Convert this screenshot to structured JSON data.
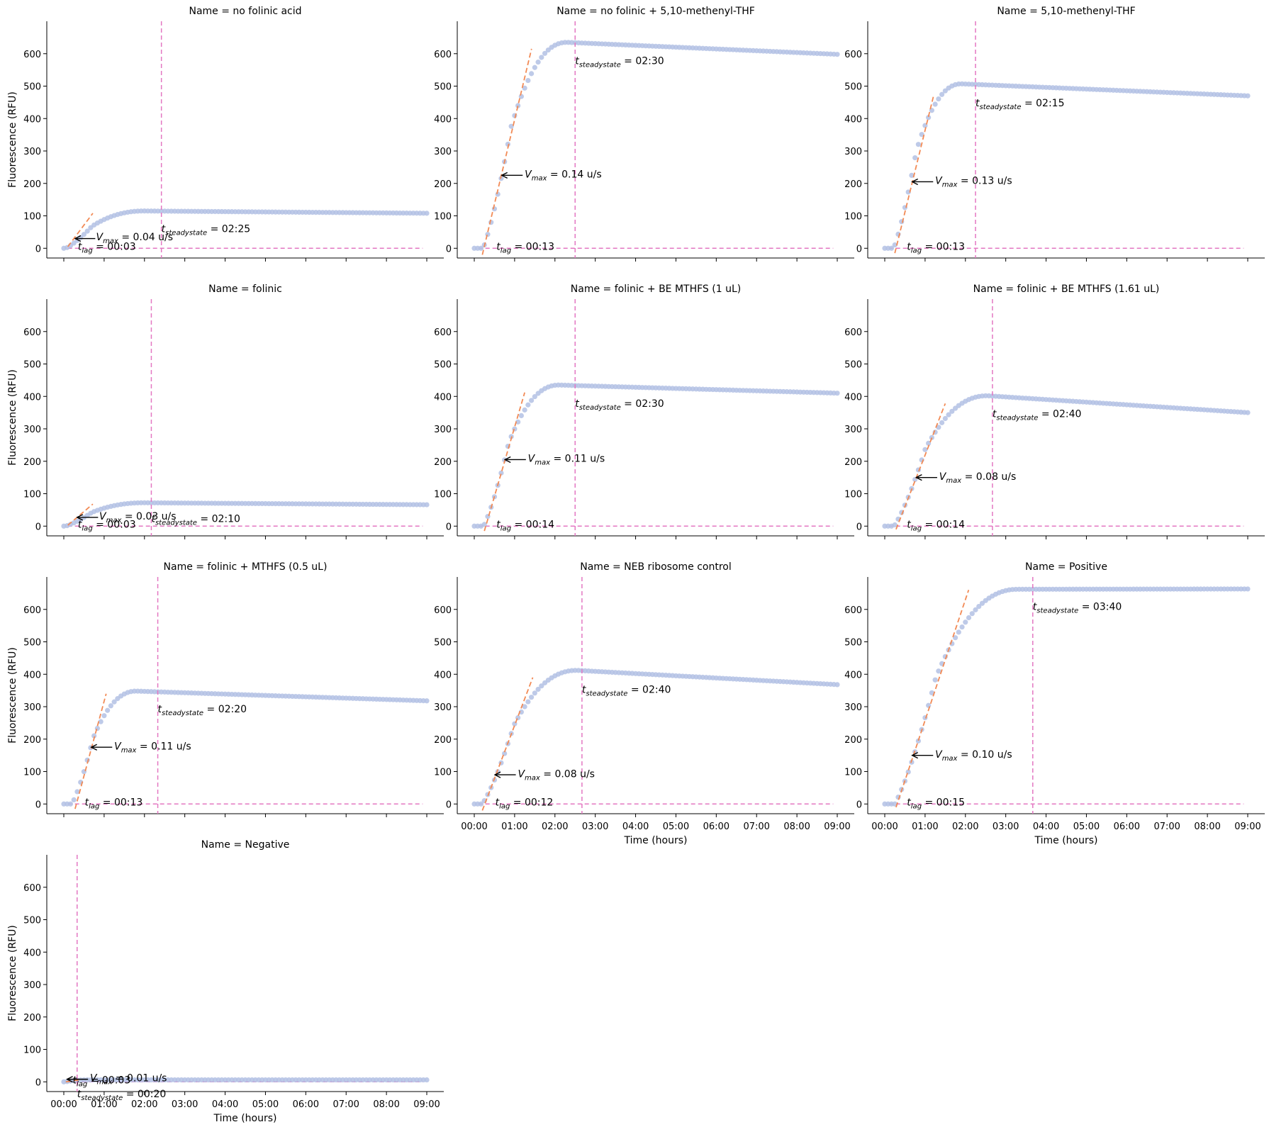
{
  "figure": {
    "ylabel": "Fluorescence (RFU)",
    "xlabel": "Time (hours)"
  },
  "colors": {
    "points": "#b3c1e4",
    "fit_line": "#f28a55",
    "marker_line": "#e377c2",
    "annotation": "#000000"
  },
  "chart_data": [
    {
      "type": "scatter",
      "title": "Name = no folinic acid",
      "xlim": [
        0,
        9
      ],
      "ylim": [
        -30,
        700
      ],
      "yticks": [
        0,
        100,
        200,
        300,
        400,
        500,
        600
      ],
      "xticks": [
        "00:00",
        "01:00",
        "02:00",
        "03:00",
        "04:00",
        "05:00",
        "06:00",
        "07:00",
        "08:00",
        "09:00"
      ],
      "show_xtick_labels": false,
      "show_ylabel": true,
      "show_xlabel": false,
      "curve": {
        "t_lag": 0.05,
        "rise_end": 2.0,
        "plateau": 115,
        "end_value": 108
      },
      "fit_line": {
        "x": [
          0.1,
          0.72
        ],
        "y": [
          5,
          108
        ]
      },
      "vline_x": 2.42,
      "hline_y": 0,
      "hline_x": [
        0.1,
        8.9
      ],
      "annotations": {
        "vmax": {
          "label": "V",
          "sub": "max",
          "text": " = 0.04 u/s",
          "x": 0.8,
          "y": 25
        },
        "tlag": {
          "label": "t",
          "sub": "lag",
          "text": " = 00:03",
          "x": 0.35,
          "y": -5
        },
        "tsteady": {
          "label": "t",
          "sub": "steadystate",
          "text": " = 02:25",
          "x": 2.42,
          "y": 50
        }
      },
      "arrow": {
        "from": [
          0.78,
          30
        ],
        "to": [
          0.28,
          30
        ]
      }
    },
    {
      "type": "scatter",
      "title": "Name = no folinic + 5,10-methenyl-THF",
      "xlim": [
        0,
        9
      ],
      "ylim": [
        -30,
        700
      ],
      "yticks": [
        0,
        100,
        200,
        300,
        400,
        500,
        600
      ],
      "xticks": [
        "00:00",
        "01:00",
        "02:00",
        "03:00",
        "04:00",
        "05:00",
        "06:00",
        "07:00",
        "08:00",
        "09:00"
      ],
      "show_xtick_labels": false,
      "show_ylabel": false,
      "show_xlabel": false,
      "curve": {
        "t_lag": 0.22,
        "rise_end": 2.3,
        "plateau": 635,
        "end_value": 598
      },
      "fit_line": {
        "x": [
          0.2,
          1.42
        ],
        "y": [
          -20,
          615
        ]
      },
      "vline_x": 2.5,
      "hline_y": 0,
      "hline_x": [
        0.1,
        8.9
      ],
      "annotations": {
        "vmax": {
          "label": "V",
          "sub": "max",
          "text": " = 0.14 u/s",
          "x": 1.25,
          "y": 218
        },
        "tlag": {
          "label": "t",
          "sub": "lag",
          "text": " = 00:13",
          "x": 0.55,
          "y": -5
        },
        "tsteady": {
          "label": "t",
          "sub": "steadystate",
          "text": " = 02:30",
          "x": 2.5,
          "y": 568
        }
      },
      "arrow": {
        "from": [
          1.2,
          225
        ],
        "to": [
          0.68,
          225
        ]
      }
    },
    {
      "type": "scatter",
      "title": "Name = 5,10-methenyl-THF",
      "xlim": [
        0,
        9
      ],
      "ylim": [
        -30,
        700
      ],
      "yticks": [
        0,
        100,
        200,
        300,
        400,
        500,
        600
      ],
      "xticks": [
        "00:00",
        "01:00",
        "02:00",
        "03:00",
        "04:00",
        "05:00",
        "06:00",
        "07:00",
        "08:00",
        "09:00"
      ],
      "show_xtick_labels": false,
      "show_ylabel": false,
      "show_xlabel": false,
      "curve": {
        "t_lag": 0.22,
        "rise_end": 1.9,
        "plateau": 507,
        "end_value": 470
      },
      "fit_line": {
        "x": [
          0.25,
          1.22
        ],
        "y": [
          -15,
          475
        ]
      },
      "vline_x": 2.25,
      "hline_y": 0,
      "hline_x": [
        0.1,
        8.9
      ],
      "annotations": {
        "vmax": {
          "label": "V",
          "sub": "max",
          "text": " = 0.13 u/s",
          "x": 1.25,
          "y": 198
        },
        "tlag": {
          "label": "t",
          "sub": "lag",
          "text": " = 00:13",
          "x": 0.55,
          "y": -5
        },
        "tsteady": {
          "label": "t",
          "sub": "steadystate",
          "text": " = 02:15",
          "x": 2.25,
          "y": 438
        }
      },
      "arrow": {
        "from": [
          1.2,
          205
        ],
        "to": [
          0.68,
          205
        ]
      }
    },
    {
      "type": "scatter",
      "title": "Name = folinic",
      "xlim": [
        0,
        9
      ],
      "ylim": [
        -30,
        700
      ],
      "yticks": [
        0,
        100,
        200,
        300,
        400,
        500,
        600
      ],
      "xticks": [
        "00:00",
        "01:00",
        "02:00",
        "03:00",
        "04:00",
        "05:00",
        "06:00",
        "07:00",
        "08:00",
        "09:00"
      ],
      "show_xtick_labels": false,
      "show_ylabel": true,
      "show_xlabel": false,
      "curve": {
        "t_lag": 0.05,
        "rise_end": 2.0,
        "plateau": 72,
        "end_value": 66
      },
      "fit_line": {
        "x": [
          0.1,
          0.72
        ],
        "y": [
          3,
          68
        ]
      },
      "vline_x": 2.17,
      "hline_y": 0,
      "hline_x": [
        0.1,
        8.9
      ],
      "annotations": {
        "vmax": {
          "label": "V",
          "sub": "max",
          "text": " = 0.03 u/s",
          "x": 0.88,
          "y": 20
        },
        "tlag": {
          "label": "t",
          "sub": "lag",
          "text": " = 00:03",
          "x": 0.35,
          "y": -5
        },
        "tsteady": {
          "label": "t",
          "sub": "steadystate",
          "text": " = 02:10",
          "x": 2.17,
          "y": 13
        }
      },
      "arrow": {
        "from": [
          0.85,
          27
        ],
        "to": [
          0.33,
          27
        ]
      }
    },
    {
      "type": "scatter",
      "title": "Name = folinic + BE MTHFS (1 uL)",
      "xlim": [
        0,
        9
      ],
      "ylim": [
        -30,
        700
      ],
      "yticks": [
        0,
        100,
        200,
        300,
        400,
        500,
        600
      ],
      "xticks": [
        "00:00",
        "01:00",
        "02:00",
        "03:00",
        "04:00",
        "05:00",
        "06:00",
        "07:00",
        "08:00",
        "09:00"
      ],
      "show_xtick_labels": false,
      "show_ylabel": false,
      "show_xlabel": false,
      "curve": {
        "t_lag": 0.23,
        "rise_end": 2.1,
        "plateau": 435,
        "end_value": 410
      },
      "fit_line": {
        "x": [
          0.25,
          1.25
        ],
        "y": [
          -15,
          412
        ]
      },
      "vline_x": 2.5,
      "hline_y": 0,
      "hline_x": [
        0.1,
        8.9
      ],
      "annotations": {
        "vmax": {
          "label": "V",
          "sub": "max",
          "text": " = 0.11 u/s",
          "x": 1.33,
          "y": 198
        },
        "tlag": {
          "label": "t",
          "sub": "lag",
          "text": " = 00:14",
          "x": 0.55,
          "y": -5
        },
        "tsteady": {
          "label": "t",
          "sub": "steadystate",
          "text": " = 02:30",
          "x": 2.5,
          "y": 368
        }
      },
      "arrow": {
        "from": [
          1.28,
          205
        ],
        "to": [
          0.76,
          205
        ]
      }
    },
    {
      "type": "scatter",
      "title": "Name = folinic + BE MTHFS (1.61 uL)",
      "xlim": [
        0,
        9
      ],
      "ylim": [
        -30,
        700
      ],
      "yticks": [
        0,
        100,
        200,
        300,
        400,
        500,
        600
      ],
      "xticks": [
        "00:00",
        "01:00",
        "02:00",
        "03:00",
        "04:00",
        "05:00",
        "06:00",
        "07:00",
        "08:00",
        "09:00"
      ],
      "show_xtick_labels": false,
      "show_ylabel": false,
      "show_xlabel": false,
      "curve": {
        "t_lag": 0.23,
        "rise_end": 2.55,
        "plateau": 402,
        "end_value": 350
      },
      "fit_line": {
        "x": [
          0.28,
          1.5
        ],
        "y": [
          -10,
          378
        ]
      },
      "vline_x": 2.67,
      "hline_y": 0,
      "hline_x": [
        0.1,
        8.9
      ],
      "annotations": {
        "vmax": {
          "label": "V",
          "sub": "max",
          "text": " = 0.08 u/s",
          "x": 1.35,
          "y": 143
        },
        "tlag": {
          "label": "t",
          "sub": "lag",
          "text": " = 00:14",
          "x": 0.55,
          "y": -5
        },
        "tsteady": {
          "label": "t",
          "sub": "steadystate",
          "text": " = 02:40",
          "x": 2.67,
          "y": 336
        }
      },
      "arrow": {
        "from": [
          1.3,
          150
        ],
        "to": [
          0.78,
          150
        ]
      }
    },
    {
      "type": "scatter",
      "title": "Name = folinic + MTHFS (0.5 uL)",
      "xlim": [
        0,
        9
      ],
      "ylim": [
        -30,
        700
      ],
      "yticks": [
        0,
        100,
        200,
        300,
        400,
        500,
        600
      ],
      "xticks": [
        "00:00",
        "01:00",
        "02:00",
        "03:00",
        "04:00",
        "05:00",
        "06:00",
        "07:00",
        "08:00",
        "09:00"
      ],
      "show_xtick_labels": false,
      "show_ylabel": true,
      "show_xlabel": false,
      "curve": {
        "t_lag": 0.2,
        "rise_end": 1.8,
        "plateau": 348,
        "end_value": 318
      },
      "fit_line": {
        "x": [
          0.28,
          1.05
        ],
        "y": [
          -15,
          340
        ]
      },
      "vline_x": 2.33,
      "hline_y": 0,
      "hline_x": [
        0.1,
        8.9
      ],
      "annotations": {
        "vmax": {
          "label": "V",
          "sub": "max",
          "text": " = 0.11 u/s",
          "x": 1.25,
          "y": 168
        },
        "tlag": {
          "label": "t",
          "sub": "lag",
          "text": " = 00:13",
          "x": 0.52,
          "y": -5
        },
        "tsteady": {
          "label": "t",
          "sub": "steadystate",
          "text": " = 02:20",
          "x": 2.33,
          "y": 283
        }
      },
      "arrow": {
        "from": [
          1.2,
          175
        ],
        "to": [
          0.68,
          175
        ]
      }
    },
    {
      "type": "scatter",
      "title": "Name = NEB ribosome control",
      "xlim": [
        0,
        9
      ],
      "ylim": [
        -30,
        700
      ],
      "yticks": [
        0,
        100,
        200,
        300,
        400,
        500,
        600
      ],
      "xticks": [
        "00:00",
        "01:00",
        "02:00",
        "03:00",
        "04:00",
        "05:00",
        "06:00",
        "07:00",
        "08:00",
        "09:00"
      ],
      "show_xtick_labels": true,
      "show_ylabel": false,
      "show_xlabel": true,
      "curve": {
        "t_lag": 0.2,
        "rise_end": 2.55,
        "plateau": 412,
        "end_value": 368
      },
      "fit_line": {
        "x": [
          0.2,
          1.45
        ],
        "y": [
          -20,
          390
        ]
      },
      "vline_x": 2.67,
      "hline_y": 0,
      "hline_x": [
        0.1,
        8.9
      ],
      "annotations": {
        "vmax": {
          "label": "V",
          "sub": "max",
          "text": " = 0.08 u/s",
          "x": 1.08,
          "y": 83
        },
        "tlag": {
          "label": "t",
          "sub": "lag",
          "text": " = 00:12",
          "x": 0.52,
          "y": -5
        },
        "tsteady": {
          "label": "t",
          "sub": "steadystate",
          "text": " = 02:40",
          "x": 2.67,
          "y": 343
        }
      },
      "arrow": {
        "from": [
          1.03,
          90
        ],
        "to": [
          0.51,
          90
        ]
      }
    },
    {
      "type": "scatter",
      "title": "Name = Positive",
      "xlim": [
        0,
        9
      ],
      "ylim": [
        -30,
        700
      ],
      "yticks": [
        0,
        100,
        200,
        300,
        400,
        500,
        600
      ],
      "xticks": [
        "00:00",
        "01:00",
        "02:00",
        "03:00",
        "04:00",
        "05:00",
        "06:00",
        "07:00",
        "08:00",
        "09:00"
      ],
      "show_xtick_labels": true,
      "show_ylabel": false,
      "show_xlabel": true,
      "curve": {
        "t_lag": 0.25,
        "rise_end": 3.3,
        "plateau": 662,
        "end_value": 663
      },
      "fit_line": {
        "x": [
          0.28,
          2.08
        ],
        "y": [
          -10,
          660
        ]
      },
      "vline_x": 3.67,
      "hline_y": 0,
      "hline_x": [
        0.1,
        8.9
      ],
      "annotations": {
        "vmax": {
          "label": "V",
          "sub": "max",
          "text": " = 0.10 u/s",
          "x": 1.25,
          "y": 143
        },
        "tlag": {
          "label": "t",
          "sub": "lag",
          "text": " = 00:15",
          "x": 0.55,
          "y": -5
        },
        "tsteady": {
          "label": "t",
          "sub": "steadystate",
          "text": " = 03:40",
          "x": 3.67,
          "y": 598
        }
      },
      "arrow": {
        "from": [
          1.2,
          150
        ],
        "to": [
          0.68,
          150
        ]
      }
    },
    {
      "type": "scatter",
      "title": "Name = Negative",
      "xlim": [
        0,
        9
      ],
      "ylim": [
        -30,
        700
      ],
      "yticks": [
        0,
        100,
        200,
        300,
        400,
        500,
        600
      ],
      "xticks": [
        "00:00",
        "01:00",
        "02:00",
        "03:00",
        "04:00",
        "05:00",
        "06:00",
        "07:00",
        "08:00",
        "09:00"
      ],
      "show_xtick_labels": true,
      "show_ylabel": true,
      "show_xlabel": true,
      "curve": {
        "t_lag": 0.02,
        "rise_end": 0.6,
        "plateau": 6,
        "end_value": 6
      },
      "fit_line": {
        "x": [
          0.05,
          0.4
        ],
        "y": [
          0,
          6
        ]
      },
      "vline_x": 0.33,
      "hline_y": 0,
      "hline_x": [
        0.1,
        8.9
      ],
      "annotations": {
        "vmax": {
          "label": "V",
          "sub": "max",
          "text": " = 0.01 u/s",
          "x": 0.65,
          "y": 2
        },
        "tlag": {
          "label": "t",
          "sub": "lag",
          "text": " = 00:03",
          "x": 0.22,
          "y": -5
        },
        "tsteady": {
          "label": "t",
          "sub": "steadystate",
          "text": " = 00:20",
          "x": 0.33,
          "y": -47
        }
      },
      "arrow": {
        "from": [
          0.6,
          8
        ],
        "to": [
          0.08,
          8
        ]
      }
    }
  ]
}
